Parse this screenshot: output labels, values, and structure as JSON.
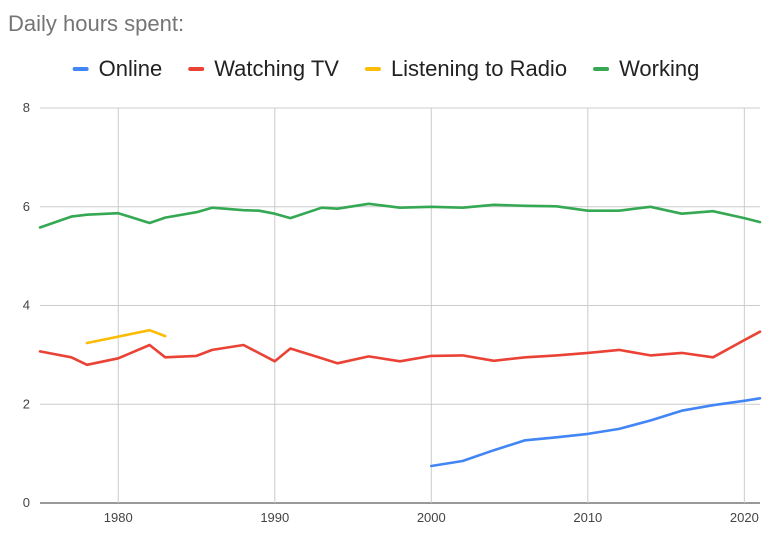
{
  "chart_data": {
    "type": "line",
    "title": "Daily hours spent:",
    "xlabel": "",
    "ylabel": "",
    "xlim": [
      1975,
      2021
    ],
    "ylim": [
      0,
      8
    ],
    "x_ticks": [
      1980,
      1990,
      2000,
      2010,
      2020
    ],
    "y_ticks": [
      0,
      2,
      4,
      6,
      8
    ],
    "grid": true,
    "legend_position": "top",
    "series": [
      {
        "name": "Online",
        "color": "#4285f4",
        "x": [
          2000,
          2002,
          2004,
          2006,
          2008,
          2010,
          2012,
          2014,
          2016,
          2018,
          2020,
          2021
        ],
        "y": [
          0.75,
          0.85,
          1.07,
          1.27,
          1.33,
          1.4,
          1.5,
          1.67,
          1.87,
          1.98,
          2.07,
          2.12
        ]
      },
      {
        "name": "Watching TV",
        "color": "#ea4335",
        "x": [
          1975,
          1977,
          1978,
          1980,
          1982,
          1983,
          1985,
          1986,
          1988,
          1990,
          1991,
          1993,
          1994,
          1996,
          1998,
          2000,
          2002,
          2004,
          2006,
          2008,
          2010,
          2012,
          2014,
          2016,
          2018,
          2020,
          2021
        ],
        "y": [
          3.07,
          2.95,
          2.8,
          2.93,
          3.2,
          2.95,
          2.98,
          3.1,
          3.2,
          2.87,
          3.13,
          2.93,
          2.83,
          2.97,
          2.87,
          2.98,
          2.99,
          2.88,
          2.95,
          2.99,
          3.04,
          3.1,
          2.99,
          3.04,
          2.95,
          3.3,
          3.47
        ]
      },
      {
        "name": "Listening to Radio",
        "color": "#fbbc04",
        "x": [
          1978,
          1980,
          1982,
          1983
        ],
        "y": [
          3.24,
          3.37,
          3.5,
          3.38
        ]
      },
      {
        "name": "Working",
        "color": "#34a853",
        "x": [
          1975,
          1977,
          1978,
          1980,
          1982,
          1983,
          1985,
          1986,
          1988,
          1989,
          1990,
          1991,
          1993,
          1994,
          1996,
          1998,
          2000,
          2002,
          2004,
          2006,
          2008,
          2010,
          2012,
          2014,
          2016,
          2018,
          2020,
          2021
        ],
        "y": [
          5.58,
          5.8,
          5.84,
          5.87,
          5.67,
          5.78,
          5.89,
          5.98,
          5.93,
          5.92,
          5.86,
          5.77,
          5.98,
          5.96,
          6.06,
          5.98,
          6.0,
          5.98,
          6.04,
          6.02,
          6.01,
          5.92,
          5.92,
          6.0,
          5.86,
          5.91,
          5.77,
          5.69
        ]
      }
    ]
  }
}
